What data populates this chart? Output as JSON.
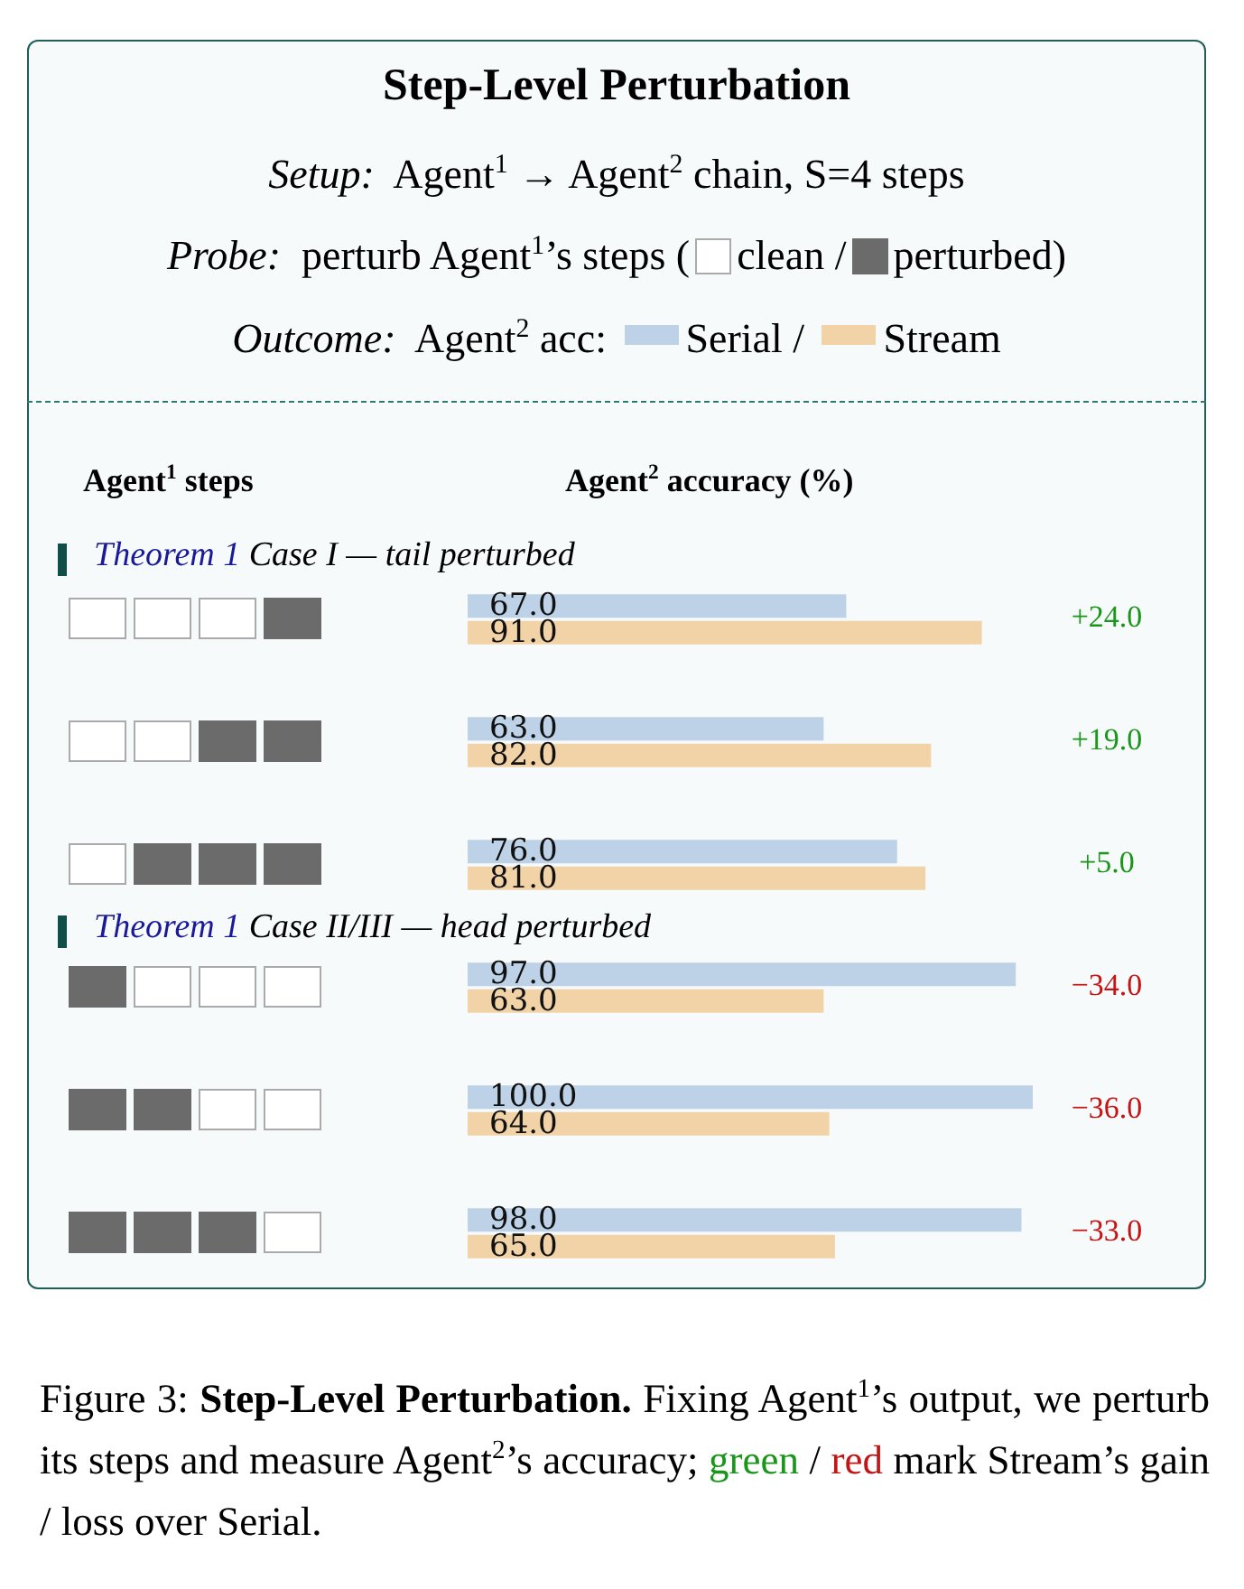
{
  "chart_data": {
    "type": "bar",
    "orientation": "horizontal",
    "title": "Step-Level Perturbation",
    "xlabel": "Agent$^{2}$ accuracy (%)",
    "categories": [
      null,
      null,
      null,
      null,
      null,
      null
    ],
    "series": [
      {
        "name": "Serial",
        "color": "#bdd1e7",
        "values": [
          67.0,
          63.0,
          76.0,
          97.0,
          100.0,
          98.0
        ],
        "value_labels": [
          "67.0",
          "63.0",
          "76.0",
          "97.0",
          "100.0",
          "98.0"
        ]
      },
      {
        "name": "Stream",
        "color": "#f2d3a8",
        "values": [
          91.0,
          82.0,
          81.0,
          63.0,
          64.0,
          65.0
        ],
        "value_labels": [
          "91.0",
          "82.0",
          "81.0",
          "63.0",
          "64.0",
          "65.0"
        ]
      }
    ],
    "legend": "top",
    "annotations": [
      "Setup:",
      "Agent$^{1}$ → Agent$^{2}$ chain, S=4 steps",
      "Probe:",
      "perturb Agent$^{1}$’s steps (",
      "clean /",
      "perturbed)",
      "Outcome:",
      "Agent$^{2}$ acc:",
      "Theorem 1",
      "Case I — tail perturbed",
      "Theorem 1",
      "Case II/III — head perturbed",
      "+24.0",
      "+19.0",
      "+5.0",
      "−34.0",
      "−36.0",
      "−33.0",
      "Figure 3:",
      "Step-Level Perturbation.",
      "Fixing Agent$^{1}$’s output, we perturb its steps and measure Agent$^{2}$’s accuracy;",
      "green",
      "/",
      "red",
      "mark Stream’s gain / loss over Serial.",
      "Agent$^{1}$ steps",
      "/"
    ]
  }
}
